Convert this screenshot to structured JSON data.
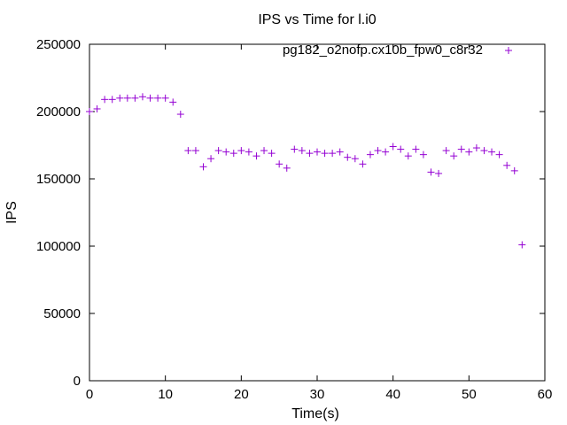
{
  "chart_data": {
    "type": "scatter",
    "title": "IPS vs Time for l.i0",
    "xlabel": "Time(s)",
    "ylabel": "IPS",
    "xlim": [
      0,
      60
    ],
    "ylim": [
      0,
      250000
    ],
    "xticks": [
      0,
      10,
      20,
      30,
      40,
      50,
      60
    ],
    "yticks": [
      0,
      50000,
      100000,
      150000,
      200000,
      250000
    ],
    "grid": false,
    "legend_position": "top-right",
    "marker": "+",
    "series": [
      {
        "name": "pg182_o2nofp.cx10b_fpw0_c8r32",
        "color": "#9400d3",
        "points": [
          [
            0,
            200000
          ],
          [
            1,
            202000
          ],
          [
            2,
            209000
          ],
          [
            3,
            209000
          ],
          [
            4,
            210000
          ],
          [
            5,
            210000
          ],
          [
            6,
            210000
          ],
          [
            7,
            211000
          ],
          [
            8,
            210000
          ],
          [
            9,
            210000
          ],
          [
            10,
            210000
          ],
          [
            11,
            207000
          ],
          [
            12,
            198000
          ],
          [
            13,
            171000
          ],
          [
            14,
            171000
          ],
          [
            15,
            159000
          ],
          [
            16,
            165000
          ],
          [
            17,
            171000
          ],
          [
            18,
            170000
          ],
          [
            19,
            169000
          ],
          [
            20,
            171000
          ],
          [
            21,
            170000
          ],
          [
            22,
            167000
          ],
          [
            23,
            171000
          ],
          [
            24,
            169000
          ],
          [
            25,
            161000
          ],
          [
            26,
            158000
          ],
          [
            27,
            172000
          ],
          [
            28,
            171000
          ],
          [
            29,
            169000
          ],
          [
            30,
            170000
          ],
          [
            31,
            169000
          ],
          [
            32,
            169000
          ],
          [
            33,
            170000
          ],
          [
            34,
            166000
          ],
          [
            35,
            165000
          ],
          [
            36,
            161000
          ],
          [
            37,
            168000
          ],
          [
            38,
            171000
          ],
          [
            39,
            170000
          ],
          [
            40,
            174000
          ],
          [
            41,
            172000
          ],
          [
            42,
            167000
          ],
          [
            43,
            172000
          ],
          [
            44,
            168000
          ],
          [
            45,
            155000
          ],
          [
            46,
            154000
          ],
          [
            47,
            171000
          ],
          [
            48,
            167000
          ],
          [
            49,
            172000
          ],
          [
            50,
            170000
          ],
          [
            51,
            173000
          ],
          [
            52,
            171000
          ],
          [
            53,
            170000
          ],
          [
            54,
            168000
          ],
          [
            55,
            160000
          ],
          [
            56,
            156000
          ],
          [
            57,
            101000
          ]
        ]
      }
    ]
  }
}
